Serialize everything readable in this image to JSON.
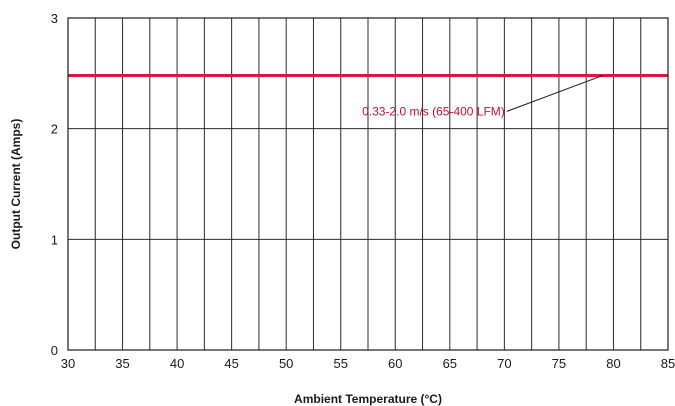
{
  "chart_data": {
    "type": "line",
    "title": "",
    "xlabel": "Ambient Temperature (°C)",
    "ylabel": "Output Current (Amps)",
    "xlim": [
      30,
      85
    ],
    "ylim": [
      0,
      3
    ],
    "x_ticks": [
      30,
      35,
      40,
      45,
      50,
      55,
      60,
      65,
      70,
      75,
      80,
      85
    ],
    "x_minor_step": 2.5,
    "y_ticks": [
      0,
      1,
      2,
      3
    ],
    "grid": true,
    "series": [
      {
        "name": "0.33-2.0 m/s (65-400 LFM)",
        "color": "#d7193f",
        "x": [
          30,
          85
        ],
        "y": [
          2.48,
          2.48
        ]
      }
    ],
    "annotations": [
      {
        "text": "0.33-2.0 m/s (65-400 LFM)",
        "series": 0,
        "text_x": 63.5,
        "text_y": 2.12,
        "point_x": 79,
        "point_y": 2.48
      }
    ]
  }
}
